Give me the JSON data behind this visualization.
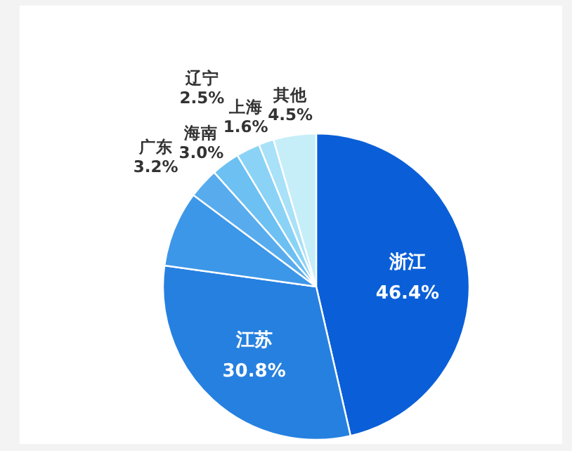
{
  "chart_data": {
    "type": "pie",
    "categories": [
      "浙江",
      "江苏",
      null,
      "广东",
      "海南",
      "辽宁",
      "上海",
      "其他"
    ],
    "values": [
      46.4,
      30.8,
      8.0,
      3.2,
      3.0,
      2.5,
      1.6,
      4.5
    ],
    "colors": [
      "#0a5fd8",
      "#2680e0",
      "#3d97e8",
      "#58acee",
      "#6cc0f2",
      "#8ad3f6",
      "#a8e1f8",
      "#c6eef9"
    ],
    "value_labels": [
      "46.4%",
      "30.8%",
      null,
      "3.2%",
      "3.0%",
      "2.5%",
      "1.6%",
      "4.5%"
    ],
    "legend": false
  }
}
